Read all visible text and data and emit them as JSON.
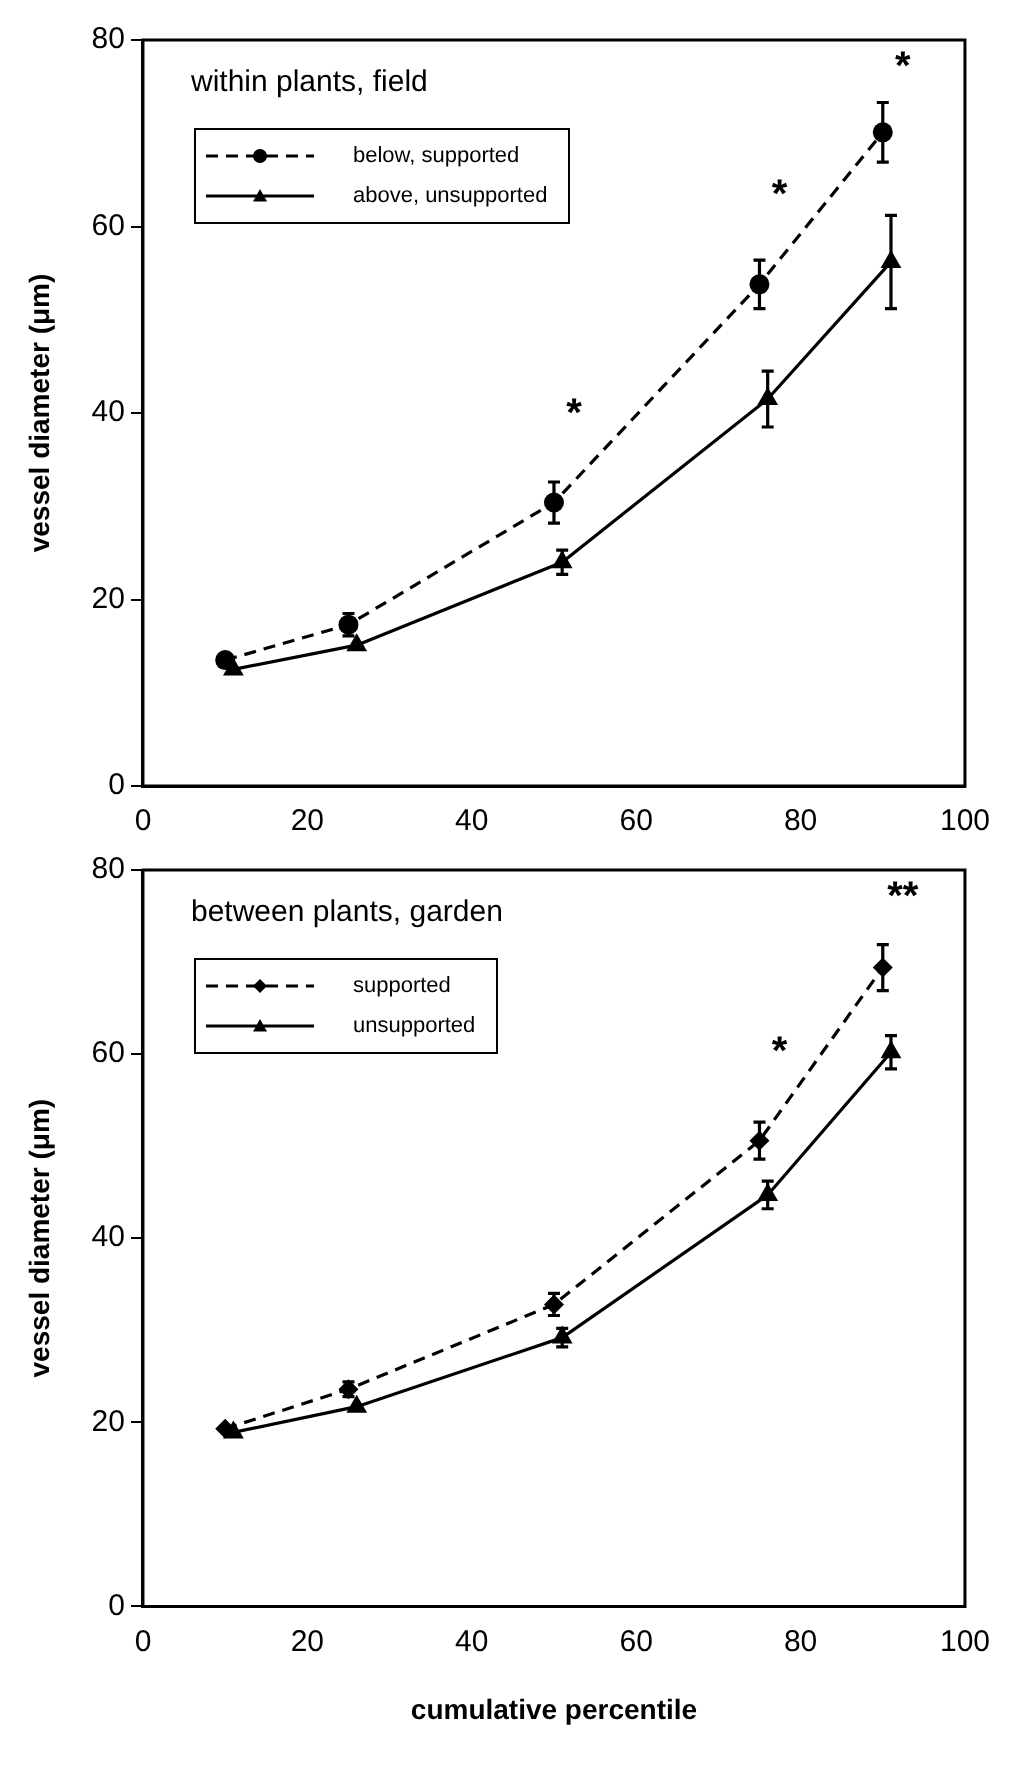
{
  "chart_data": [
    {
      "type": "line",
      "title": "within plants, field",
      "ylabel": "vessel diameter (μm)",
      "xlim": [
        0,
        100
      ],
      "xticks": [
        0,
        20,
        40,
        60,
        80,
        100
      ],
      "ylim": [
        0,
        80
      ],
      "yticks": [
        0,
        20,
        40,
        60,
        80
      ],
      "grid": false,
      "legend": "top left",
      "series": [
        {
          "name": "below, supported",
          "color": "#000000",
          "marker": "circle",
          "line_style": "dashed",
          "x": [
            10,
            25,
            50,
            75,
            90
          ],
          "values": [
            13.5,
            17.3,
            30.4,
            53.8,
            70.1
          ],
          "errors": [
            null,
            1.2,
            2.2,
            2.6,
            3.2
          ]
        },
        {
          "name": "above, unsupported",
          "color": "#000000",
          "marker": "triangle",
          "line_style": "solid",
          "x": [
            11,
            26,
            51,
            76,
            91
          ],
          "values": [
            12.5,
            15.1,
            24,
            41.5,
            56.2
          ],
          "errors": [
            null,
            null,
            1.3,
            3,
            5
          ]
        }
      ],
      "annotations": [
        {
          "text": "*",
          "x": 50,
          "y": 30.4
        },
        {
          "text": "*",
          "x": 75,
          "y": 53.8
        },
        {
          "text": "*",
          "x": 90,
          "y": 70.1
        }
      ]
    },
    {
      "type": "line",
      "title": "between plants, garden",
      "xlabel": "cumulative percentile",
      "ylabel": "vessel diameter (μm)",
      "xlim": [
        0,
        100
      ],
      "xticks": [
        0,
        20,
        40,
        60,
        80,
        100
      ],
      "ylim": [
        0,
        80
      ],
      "yticks": [
        0,
        20,
        40,
        60,
        80
      ],
      "grid": false,
      "legend": "top left",
      "series": [
        {
          "name": "supported",
          "color": "#000000",
          "marker": "diamond",
          "line_style": "dashed",
          "x": [
            10,
            25,
            50,
            75,
            90
          ],
          "values": [
            19.3,
            23.6,
            32.8,
            50.6,
            69.4
          ],
          "errors": [
            null,
            0.8,
            1.2,
            2,
            2.5
          ]
        },
        {
          "name": "unsupported",
          "color": "#000000",
          "marker": "triangle",
          "line_style": "solid",
          "x": [
            11,
            26,
            51,
            76,
            91
          ],
          "values": [
            18.9,
            21.7,
            29.2,
            44.7,
            60.2
          ],
          "errors": [
            null,
            null,
            1,
            1.5,
            1.8
          ]
        }
      ],
      "annotations": [
        {
          "text": "*",
          "x": 75,
          "y": 50.6
        },
        {
          "text": "**",
          "x": 90,
          "y": 69.4
        }
      ]
    }
  ]
}
